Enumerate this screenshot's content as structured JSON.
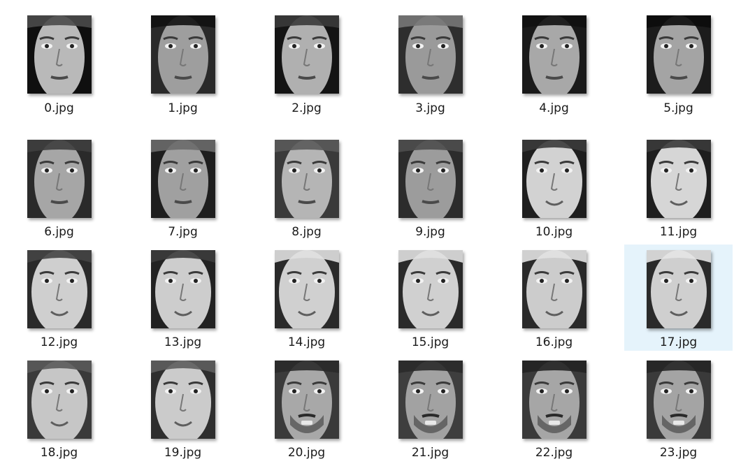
{
  "window": {
    "selected_index": 17
  },
  "files": [
    {
      "name": "0.jpg",
      "bg": "#0f0f0f",
      "skin": "#b9b9b9",
      "hair": "#4a4a4a",
      "icon": "face-thumbnail-icon"
    },
    {
      "name": "1.jpg",
      "bg": "#2a2a2a",
      "skin": "#9e9e9e",
      "hair": "#111111",
      "icon": "face-thumbnail-icon"
    },
    {
      "name": "2.jpg",
      "bg": "#141414",
      "skin": "#b0b0b0",
      "hair": "#3a3a3a",
      "icon": "face-thumbnail-icon"
    },
    {
      "name": "3.jpg",
      "bg": "#2e2e2e",
      "skin": "#9a9a9a",
      "hair": "#777777",
      "icon": "face-thumbnail-icon"
    },
    {
      "name": "4.jpg",
      "bg": "#1a1a1a",
      "skin": "#a8a8a8",
      "hair": "#111111",
      "icon": "face-thumbnail-icon"
    },
    {
      "name": "5.jpg",
      "bg": "#1c1c1c",
      "skin": "#a4a4a4",
      "hair": "#0c0c0c",
      "icon": "face-thumbnail-icon"
    },
    {
      "name": "6.jpg",
      "bg": "#2a2a2a",
      "skin": "#a6a6a6",
      "hair": "#3e3e3e",
      "icon": "face-thumbnail-icon"
    },
    {
      "name": "7.jpg",
      "bg": "#1e1e1e",
      "skin": "#a0a0a0",
      "hair": "#6a6a6a",
      "icon": "face-thumbnail-icon"
    },
    {
      "name": "8.jpg",
      "bg": "#3a3a3a",
      "skin": "#b5b5b5",
      "hair": "#5a5a5a",
      "icon": "face-thumbnail-icon"
    },
    {
      "name": "9.jpg",
      "bg": "#2c2c2c",
      "skin": "#9c9c9c",
      "hair": "#4e4e4e",
      "icon": "face-thumbnail-icon"
    },
    {
      "name": "10.jpg",
      "bg": "#1e1e1e",
      "skin": "#d2d2d2",
      "hair": "#3a3a3a",
      "icon": "face-thumbnail-icon"
    },
    {
      "name": "11.jpg",
      "bg": "#1e1e1e",
      "skin": "#d6d6d6",
      "hair": "#3a3a3a",
      "icon": "face-thumbnail-icon"
    },
    {
      "name": "12.jpg",
      "bg": "#2a2a2a",
      "skin": "#cfcfcf",
      "hair": "#444444",
      "icon": "face-thumbnail-icon"
    },
    {
      "name": "13.jpg",
      "bg": "#222222",
      "skin": "#cdcdcd",
      "hair": "#3c3c3c",
      "icon": "face-thumbnail-icon"
    },
    {
      "name": "14.jpg",
      "bg": "#2a2a2a",
      "skin": "#d0d0d0",
      "hair": "#e0e0e0",
      "icon": "face-thumbnail-icon"
    },
    {
      "name": "15.jpg",
      "bg": "#2a2a2a",
      "skin": "#d0d0d0",
      "hair": "#e0e0e0",
      "icon": "face-thumbnail-icon"
    },
    {
      "name": "16.jpg",
      "bg": "#2a2a2a",
      "skin": "#cccccc",
      "hair": "#e2e2e2",
      "icon": "face-thumbnail-icon"
    },
    {
      "name": "17.jpg",
      "bg": "#2a2a2a",
      "skin": "#cfcfcf",
      "hair": "#e4e4e4",
      "icon": "face-thumbnail-icon"
    },
    {
      "name": "18.jpg",
      "bg": "#3a3a3a",
      "skin": "#c6c6c6",
      "hair": "#5a5a5a",
      "icon": "face-thumbnail-icon"
    },
    {
      "name": "19.jpg",
      "bg": "#2e2e2e",
      "skin": "#cbcbcb",
      "hair": "#5e5e5e",
      "icon": "face-thumbnail-icon"
    },
    {
      "name": "20.jpg",
      "bg": "#3a3a3a",
      "skin": "#a8a8a8",
      "hair": "#2a2a2a",
      "icon": "face-thumbnail-icon"
    },
    {
      "name": "21.jpg",
      "bg": "#3e3e3e",
      "skin": "#a2a2a2",
      "hair": "#2a2a2a",
      "icon": "face-thumbnail-icon"
    },
    {
      "name": "22.jpg",
      "bg": "#3a3a3a",
      "skin": "#a6a6a6",
      "hair": "#242424",
      "icon": "face-thumbnail-icon"
    },
    {
      "name": "23.jpg",
      "bg": "#3a3a3a",
      "skin": "#a4a4a4",
      "hair": "#262626",
      "icon": "face-thumbnail-icon"
    }
  ],
  "colors": {
    "selection": "#e5f3fb",
    "label_text": "#1a1a1a"
  }
}
